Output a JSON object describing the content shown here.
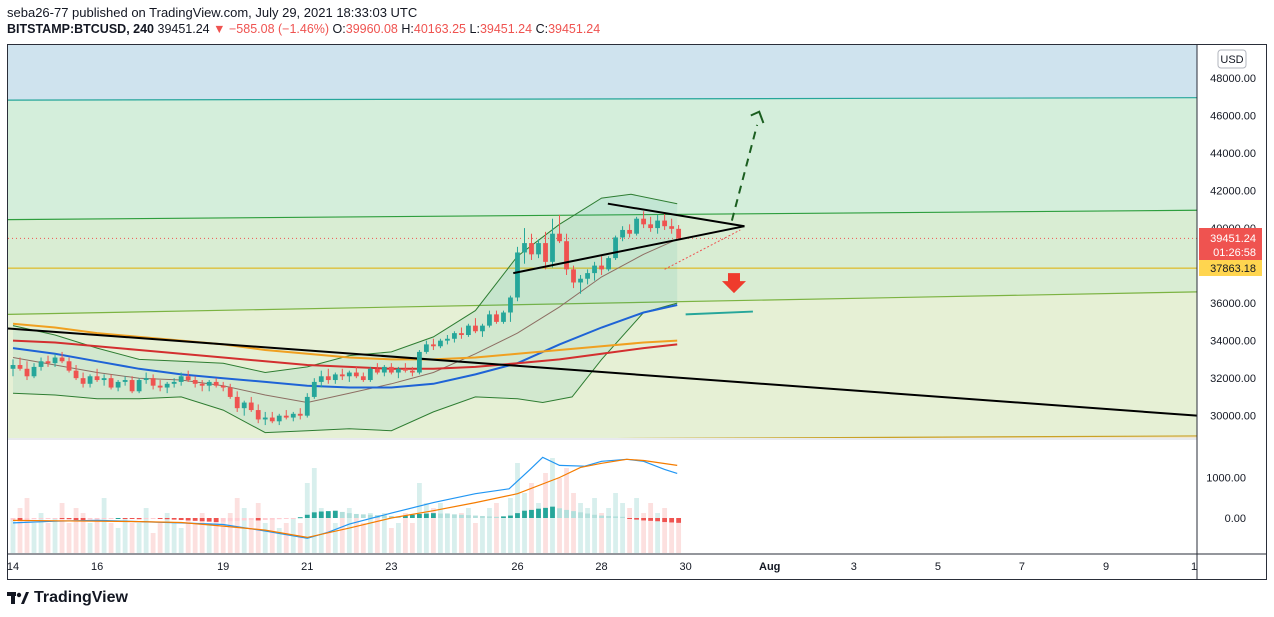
{
  "header": {
    "publisher_line": "seba26-77 published on TradingView.com, July 29, 2021 18:33:03 UTC",
    "symbol": "BITSTAMP:BTCUSD, 240",
    "last_price": "39451.24",
    "change": "−585.08 (−1.46%)",
    "open_label": "O:",
    "open": "39960.08",
    "high_label": "H:",
    "high": "40163.25",
    "low_label": "L:",
    "low": "39451.24",
    "close_label": "C:",
    "close": "39451.24"
  },
  "footer": {
    "brand": "TradingView"
  },
  "colors": {
    "up": "#26a69a",
    "down": "#ef5350",
    "price_badge": "#ef5350",
    "level_badge": "#ffd54f",
    "band_blue": "#cfe3ee",
    "band_green": "#d4eedb"
  },
  "chart_data": {
    "type": "candlestick",
    "currency": "USD",
    "price_axis_ticks": [
      "48000.00",
      "46000.00",
      "44000.00",
      "42000.00",
      "40000.00",
      "38000.00",
      "36000.00",
      "34000.00",
      "32000.00",
      "30000.00"
    ],
    "osc_axis_ticks": [
      "1000.00",
      "0.00"
    ],
    "time_axis_ticks": [
      "14",
      "16",
      "19",
      "21",
      "23",
      "26",
      "28",
      "30",
      "Aug",
      "3",
      "5",
      "7",
      "9",
      "1"
    ],
    "last_price_label": "39451.24",
    "countdown_label": "01:26:58",
    "level_label": "37863.18",
    "ylim": [
      28600,
      49800
    ],
    "x_day_range": [
      14,
      45.5
    ],
    "candles": [
      [
        14.0,
        32500,
        33000,
        32100,
        32700
      ],
      [
        14.167,
        32700,
        33100,
        32400,
        32500
      ],
      [
        14.333,
        32500,
        32900,
        31900,
        32100
      ],
      [
        14.5,
        32100,
        32800,
        32000,
        32600
      ],
      [
        14.667,
        32600,
        33100,
        32400,
        32900
      ],
      [
        14.833,
        32900,
        33200,
        32600,
        32800
      ],
      [
        15.0,
        32800,
        33300,
        32600,
        33100
      ],
      [
        15.167,
        33100,
        33400,
        32800,
        32900
      ],
      [
        15.333,
        32900,
        33100,
        32300,
        32400
      ],
      [
        15.5,
        32400,
        32700,
        31900,
        32000
      ],
      [
        15.667,
        32000,
        32300,
        31500,
        31700
      ],
      [
        15.833,
        31700,
        32200,
        31500,
        32100
      ],
      [
        16.0,
        32100,
        32500,
        31800,
        31900
      ],
      [
        16.167,
        31900,
        32200,
        31600,
        32000
      ],
      [
        16.333,
        32000,
        32200,
        31400,
        31500
      ],
      [
        16.5,
        31500,
        31900,
        31300,
        31800
      ],
      [
        16.667,
        31800,
        32100,
        31600,
        31900
      ],
      [
        16.833,
        31900,
        32100,
        31200,
        31300
      ],
      [
        17.0,
        31300,
        32000,
        31200,
        31900
      ],
      [
        17.167,
        31900,
        32300,
        31700,
        32000
      ],
      [
        17.333,
        32000,
        32200,
        31400,
        31600
      ],
      [
        17.5,
        31600,
        31900,
        31300,
        31500
      ],
      [
        17.667,
        31500,
        31800,
        31200,
        31700
      ],
      [
        17.833,
        31700,
        32000,
        31500,
        31800
      ],
      [
        18.0,
        31800,
        32300,
        31600,
        32100
      ],
      [
        18.167,
        32100,
        32400,
        31800,
        31900
      ],
      [
        18.333,
        31900,
        32100,
        31500,
        31700
      ],
      [
        18.5,
        31700,
        31900,
        31300,
        31600
      ],
      [
        18.667,
        31600,
        31900,
        31300,
        31800
      ],
      [
        18.833,
        31800,
        32000,
        31500,
        31600
      ],
      [
        19.0,
        31600,
        31800,
        31300,
        31500
      ],
      [
        19.167,
        31500,
        31700,
        30900,
        31000
      ],
      [
        19.333,
        31000,
        31300,
        30200,
        30400
      ],
      [
        19.5,
        30400,
        30800,
        30000,
        30700
      ],
      [
        19.667,
        30700,
        31000,
        30200,
        30300
      ],
      [
        19.833,
        30300,
        30600,
        29600,
        29800
      ],
      [
        20.0,
        29800,
        30200,
        29500,
        29900
      ],
      [
        20.167,
        29900,
        30200,
        29600,
        29700
      ],
      [
        20.333,
        29700,
        30100,
        29500,
        30000
      ],
      [
        20.5,
        30000,
        30300,
        29800,
        29900
      ],
      [
        20.667,
        29900,
        30200,
        29700,
        30100
      ],
      [
        20.833,
        30100,
        30400,
        29800,
        30000
      ],
      [
        21.0,
        30000,
        31200,
        29900,
        31000
      ],
      [
        21.167,
        31000,
        32000,
        30900,
        31800
      ],
      [
        21.333,
        31800,
        32400,
        31500,
        32100
      ],
      [
        21.5,
        32100,
        32500,
        31700,
        31900
      ],
      [
        21.667,
        31900,
        32300,
        31700,
        32200
      ],
      [
        21.833,
        32200,
        32500,
        31900,
        32100
      ],
      [
        22.0,
        32100,
        32400,
        31800,
        32300
      ],
      [
        22.167,
        32300,
        32600,
        32000,
        32100
      ],
      [
        22.333,
        32100,
        32300,
        31800,
        31900
      ],
      [
        22.5,
        31900,
        32600,
        31800,
        32500
      ],
      [
        22.667,
        32500,
        32800,
        32200,
        32300
      ],
      [
        22.833,
        32300,
        32700,
        32100,
        32600
      ],
      [
        23.0,
        32600,
        32800,
        32200,
        32300
      ],
      [
        23.167,
        32300,
        32600,
        32000,
        32500
      ],
      [
        23.333,
        32500,
        32800,
        32300,
        32400
      ],
      [
        23.5,
        32400,
        32600,
        32100,
        32300
      ],
      [
        23.667,
        32300,
        33500,
        32200,
        33400
      ],
      [
        23.833,
        33400,
        34000,
        33300,
        33800
      ],
      [
        24.0,
        33800,
        34100,
        33500,
        33700
      ],
      [
        24.167,
        33700,
        34100,
        33600,
        34000
      ],
      [
        24.333,
        34000,
        34300,
        33800,
        34100
      ],
      [
        24.5,
        34100,
        34500,
        33900,
        34400
      ],
      [
        24.667,
        34400,
        34700,
        34100,
        34300
      ],
      [
        24.833,
        34300,
        34900,
        34200,
        34800
      ],
      [
        25.0,
        34800,
        35200,
        34400,
        34500
      ],
      [
        25.167,
        34500,
        34900,
        34200,
        34800
      ],
      [
        25.333,
        34800,
        35600,
        34700,
        35400
      ],
      [
        25.5,
        35400,
        35600,
        34900,
        35000
      ],
      [
        25.667,
        35000,
        35600,
        34900,
        35500
      ],
      [
        25.833,
        35500,
        36400,
        35000,
        36300
      ],
      [
        26.0,
        36300,
        39000,
        36100,
        38700
      ],
      [
        26.167,
        38700,
        40000,
        38100,
        39200
      ],
      [
        26.333,
        39200,
        39700,
        38300,
        38600
      ],
      [
        26.5,
        38600,
        39400,
        38400,
        39200
      ],
      [
        26.667,
        39200,
        39800,
        37800,
        38200
      ],
      [
        26.833,
        38200,
        40500,
        37900,
        39700
      ],
      [
        27.0,
        39700,
        40700,
        39200,
        39300
      ],
      [
        27.167,
        39300,
        39700,
        37500,
        37800
      ],
      [
        27.333,
        37800,
        38000,
        36800,
        37100
      ],
      [
        27.5,
        37100,
        37500,
        36500,
        37300
      ],
      [
        27.667,
        37300,
        37800,
        37000,
        37600
      ],
      [
        27.833,
        37600,
        38200,
        37200,
        38000
      ],
      [
        28.0,
        38000,
        38500,
        37500,
        37800
      ],
      [
        28.167,
        37800,
        38500,
        37700,
        38400
      ],
      [
        28.333,
        38400,
        39600,
        38300,
        39500
      ],
      [
        28.5,
        39500,
        40100,
        39300,
        39900
      ],
      [
        28.667,
        39900,
        40200,
        39500,
        39700
      ],
      [
        28.833,
        39700,
        40600,
        39600,
        40500
      ],
      [
        29.0,
        40500,
        40900,
        40000,
        40200
      ],
      [
        29.167,
        40200,
        40600,
        39800,
        40000
      ],
      [
        29.333,
        40000,
        40700,
        39700,
        40400
      ],
      [
        29.5,
        40400,
        40800,
        39900,
        40100
      ],
      [
        29.667,
        40100,
        40500,
        39700,
        39960
      ],
      [
        29.833,
        39960,
        40163,
        39450,
        39451
      ]
    ],
    "volume_heights": [
      0.35,
      0.45,
      0.55,
      0.3,
      0.4,
      0.3,
      0.35,
      0.5,
      0.3,
      0.45,
      0.4,
      0.3,
      0.35,
      0.55,
      0.3,
      0.25,
      0.35,
      0.3,
      0.3,
      0.45,
      0.2,
      0.3,
      0.4,
      0.3,
      0.25,
      0.35,
      0.3,
      0.4,
      0.3,
      0.35,
      0.35,
      0.4,
      0.55,
      0.45,
      0.35,
      0.5,
      0.3,
      0.35,
      0.25,
      0.3,
      0.35,
      0.3,
      0.7,
      0.85,
      0.45,
      0.4,
      0.3,
      0.35,
      0.45,
      0.35,
      0.3,
      0.4,
      0.35,
      0.4,
      0.25,
      0.3,
      0.4,
      0.3,
      0.7,
      0.5,
      0.45,
      0.5,
      0.4,
      0.35,
      0.4,
      0.45,
      0.3,
      0.35,
      0.45,
      0.5,
      0.35,
      0.55,
      0.9,
      0.6,
      0.7,
      0.5,
      0.8,
      0.95,
      0.75,
      0.85,
      0.6,
      0.5,
      0.45,
      0.55,
      0.4,
      0.45,
      0.6,
      0.5,
      0.45,
      0.55,
      0.4,
      0.5,
      0.4,
      0.45,
      0.35,
      0.3
    ],
    "macd_hist": [
      -60,
      -70,
      -50,
      -30,
      -20,
      -15,
      -10,
      -20,
      -30,
      -50,
      -60,
      -40,
      -30,
      -20,
      -10,
      0,
      -10,
      -20,
      -30,
      -20,
      -10,
      -20,
      -30,
      -40,
      -50,
      -60,
      -70,
      -80,
      -90,
      -100,
      -90,
      -80,
      -70,
      -60,
      -50,
      -60,
      -50,
      -40,
      -30,
      -20,
      -10,
      20,
      80,
      140,
      160,
      170,
      180,
      150,
      120,
      100,
      90,
      80,
      70,
      60,
      50,
      40,
      60,
      80,
      100,
      110,
      120,
      110,
      100,
      90,
      80,
      70,
      60,
      50,
      40,
      30,
      40,
      60,
      120,
      180,
      200,
      230,
      250,
      280,
      240,
      200,
      170,
      140,
      110,
      80,
      60,
      50,
      40,
      30,
      -20,
      -40,
      -60,
      -70,
      -80,
      -100,
      -110,
      -120
    ]
  }
}
